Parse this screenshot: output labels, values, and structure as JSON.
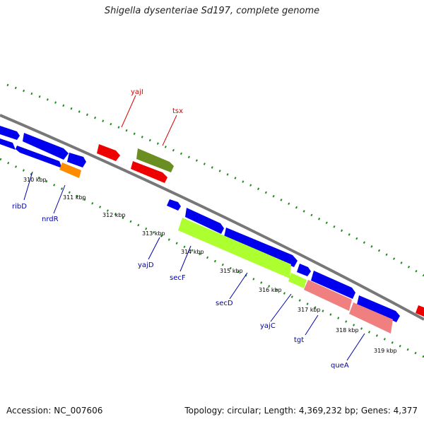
{
  "title": "Shigella dysenteriae Sd197, complete genome",
  "footer": {
    "accession": "Accession: NC_007606",
    "topology": "Topology: circular; Length: 4,369,232 bp; Genes: 4,377"
  },
  "colors": {
    "blue": "#0000ee",
    "red": "#ee0000",
    "olive": "#6b8e23",
    "orange": "#ff8c00",
    "lime": "#adff2f",
    "pink": "#f08080",
    "track": "#808080",
    "tick": "#228b22",
    "label_blue": "#0000aa",
    "label_red": "#dd0000"
  },
  "scale_labels": [
    "310 kbp",
    "311 kbp",
    "312 kbp",
    "313 kbp",
    "314 kbp",
    "315 kbp",
    "316 kbp",
    "317 kbp",
    "318 kbp",
    "319 kbp"
  ],
  "gene_labels": [
    {
      "text": "ribD",
      "color": "blue"
    },
    {
      "text": "nrdR",
      "color": "blue"
    },
    {
      "text": "yajD",
      "color": "blue"
    },
    {
      "text": "secF",
      "color": "blue"
    },
    {
      "text": "secD",
      "color": "blue"
    },
    {
      "text": "yajC",
      "color": "blue"
    },
    {
      "text": "tgt",
      "color": "blue"
    },
    {
      "text": "queA",
      "color": "blue"
    },
    {
      "text": "yajI",
      "color": "red"
    },
    {
      "text": "tsx",
      "color": "red"
    }
  ]
}
